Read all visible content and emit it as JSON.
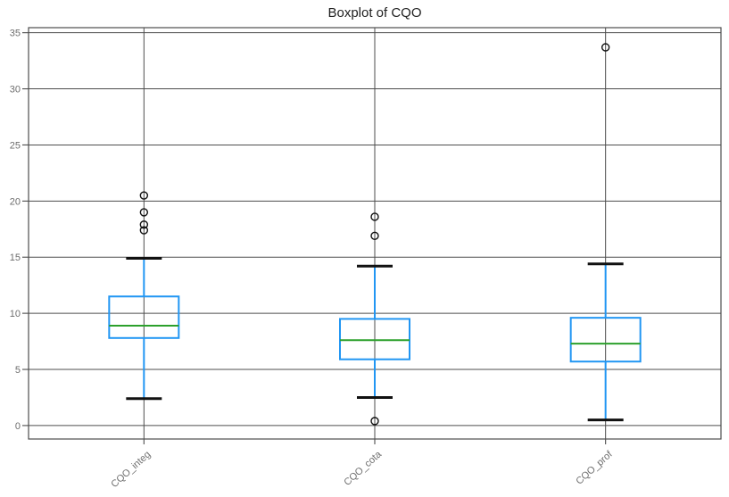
{
  "chart_data": {
    "type": "boxplot",
    "title": "Boxplot of CQO",
    "categories": [
      "CQO_integ",
      "CQO_cota",
      "CQO_prof"
    ],
    "series": [
      {
        "name": "CQO_integ",
        "whisker_low": 2.4,
        "q1": 7.8,
        "median": 8.9,
        "q3": 11.5,
        "whisker_high": 14.9,
        "outliers": [
          17.4,
          17.9,
          19.0,
          20.5
        ]
      },
      {
        "name": "CQO_cota",
        "whisker_low": 2.5,
        "q1": 5.9,
        "median": 7.6,
        "q3": 9.5,
        "whisker_high": 14.2,
        "outliers": [
          0.4,
          16.9,
          18.6
        ]
      },
      {
        "name": "CQO_prof",
        "whisker_low": 0.5,
        "q1": 5.7,
        "median": 7.3,
        "q3": 9.6,
        "whisker_high": 14.4,
        "outliers": [
          33.7
        ]
      }
    ],
    "yticks": [
      0,
      5,
      10,
      15,
      20,
      25,
      30,
      35
    ],
    "ytick_labels": [
      "0",
      "5",
      "10",
      "15",
      "20",
      "25",
      "30",
      "35"
    ],
    "ylim": [
      -1.2,
      35.45
    ],
    "xlim": [
      0.5,
      3.5
    ],
    "grid": true,
    "legend": false,
    "xlabel": "",
    "ylabel": "",
    "x_label_rotation_deg": 42,
    "colors": {
      "box": "#2196F3",
      "whisker": "#2196F3",
      "median": "#2CA02C",
      "cap": "#111111",
      "outlier": "#111111",
      "grid": "#4D4D4D",
      "spine": "#4D4D4D",
      "tick_label": "#6E6E6E",
      "title": "#212121",
      "background": "#FFFFFF"
    }
  }
}
